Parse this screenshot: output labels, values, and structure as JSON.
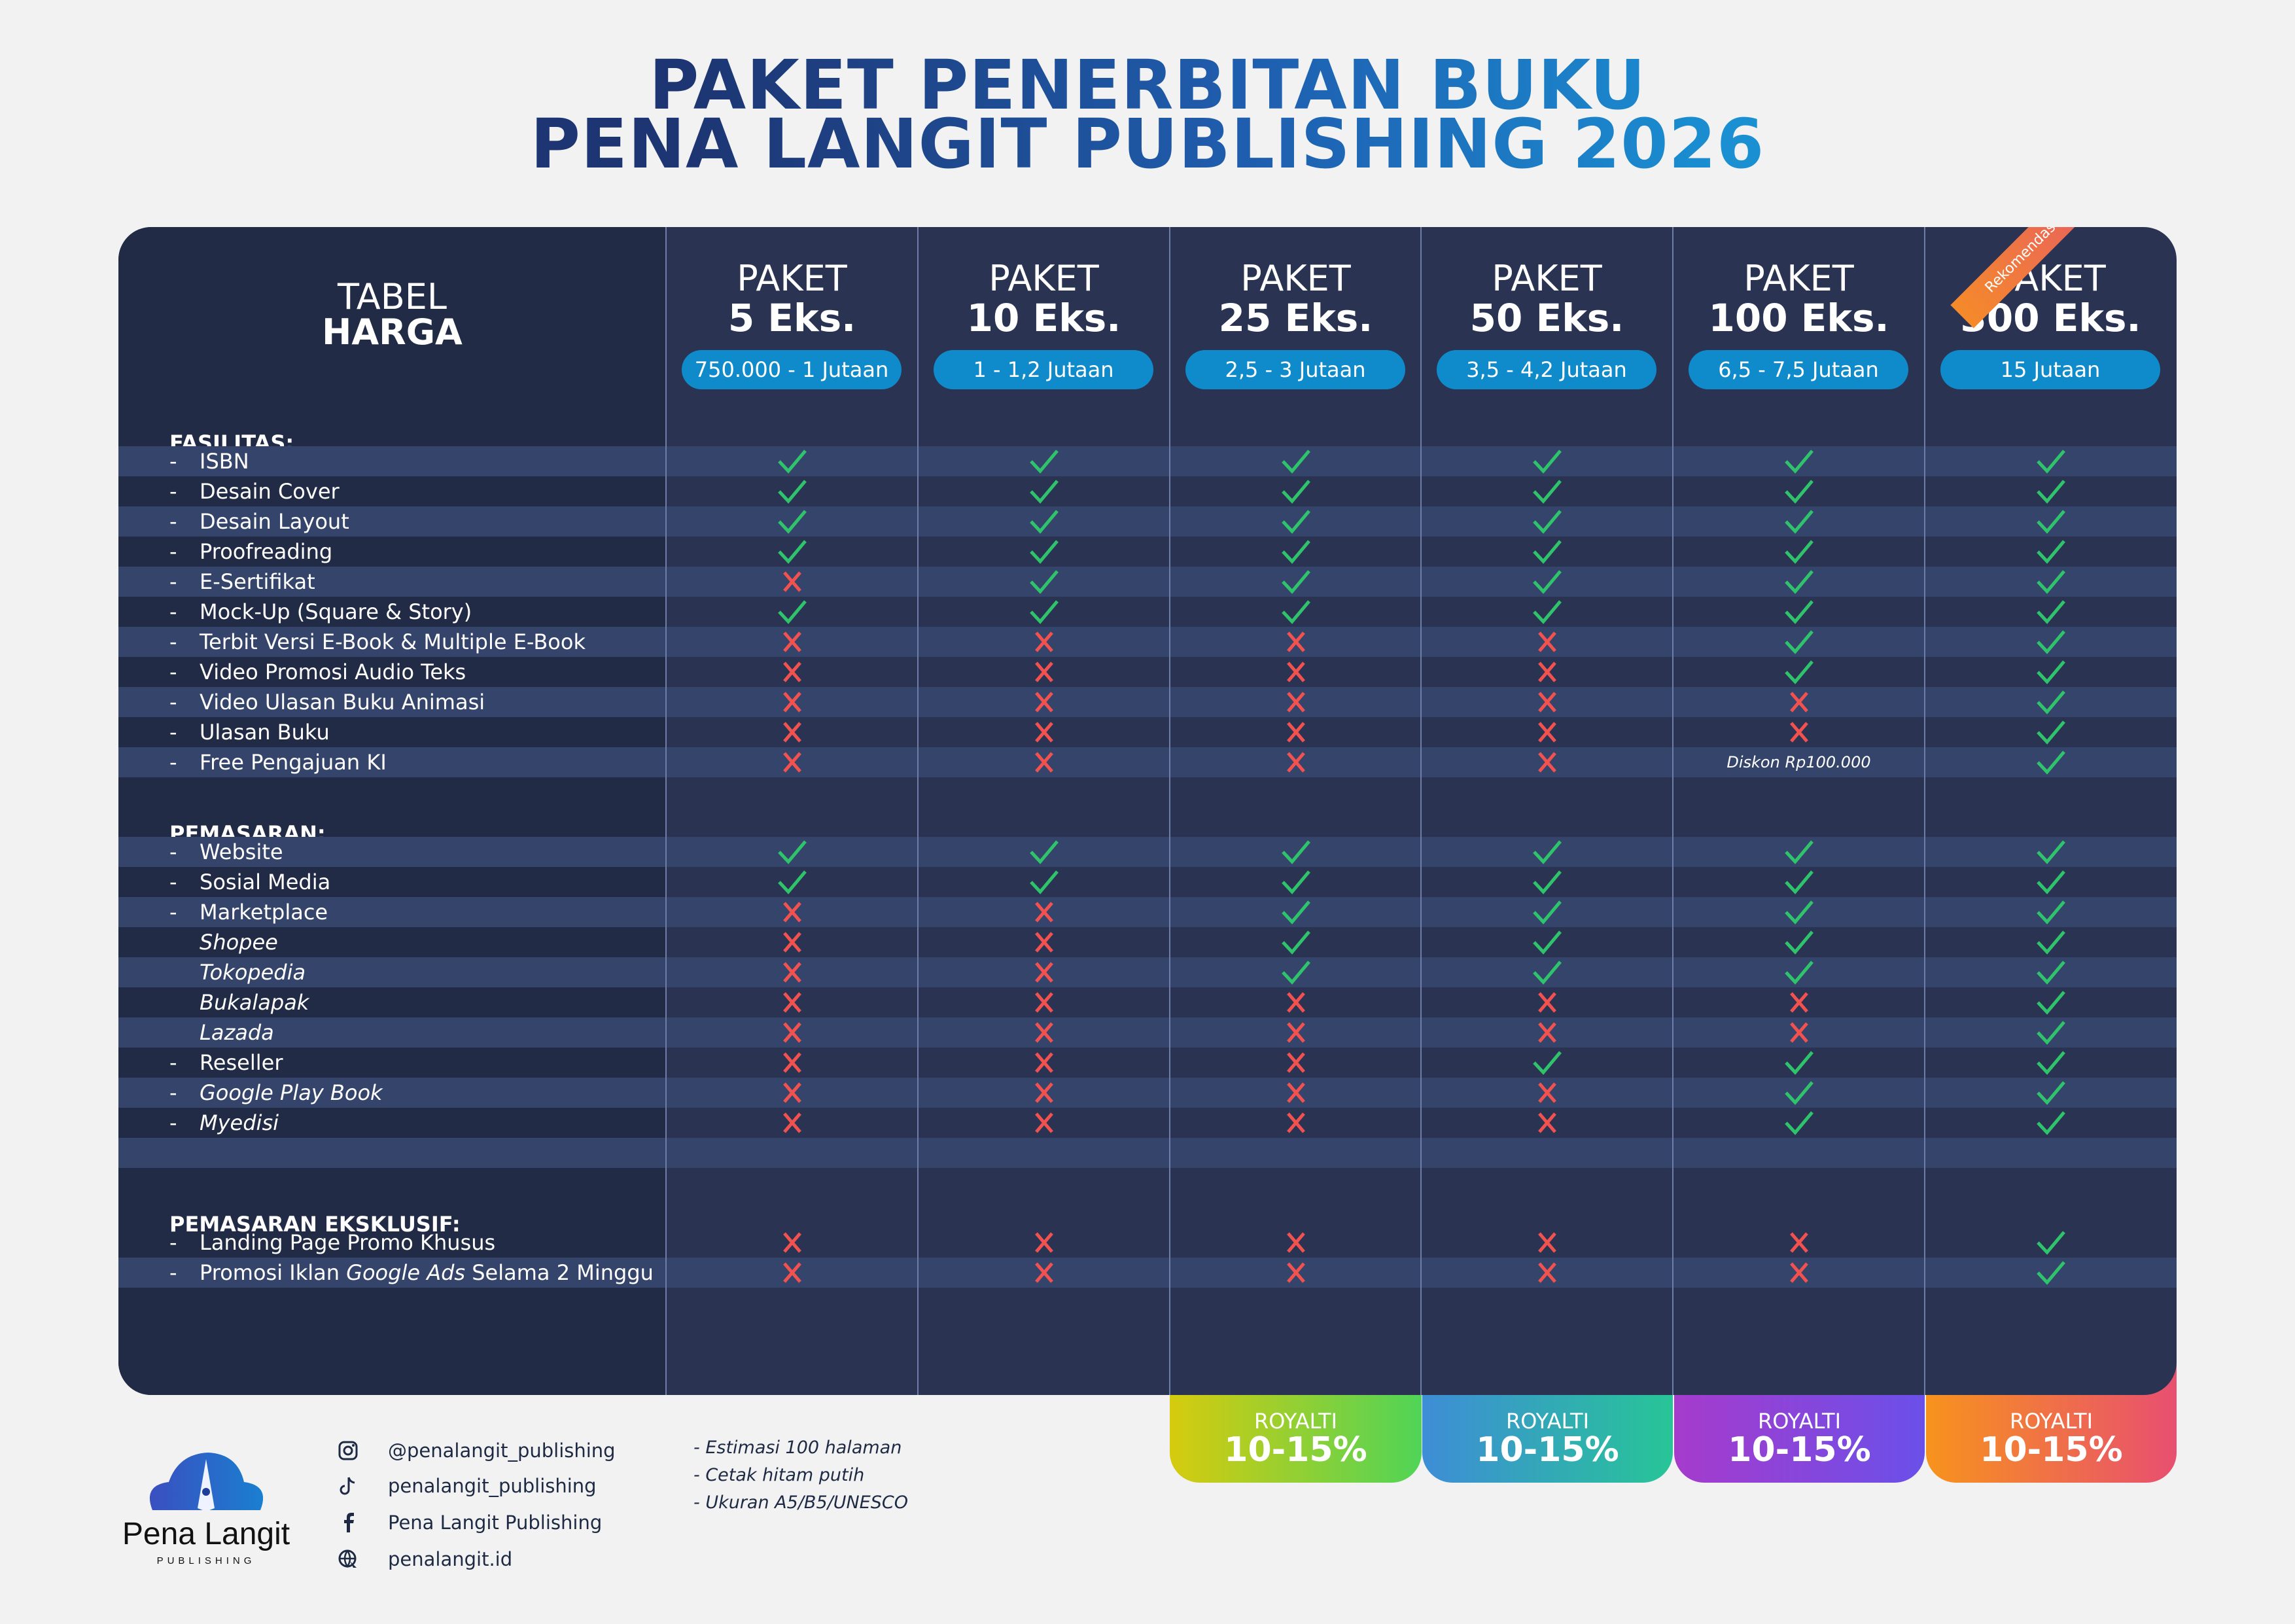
{
  "title": {
    "line1": "PAKET PENERBITAN BUKU",
    "line2": "PENA LANGIT PUBLISHING 2026"
  },
  "table_label": {
    "line1": "TABEL",
    "line2": "HARGA"
  },
  "badge": "Rekomendasi",
  "packages": [
    {
      "label": "PAKET",
      "name": "5 Eks.",
      "price": "750.000 - 1 Jutaan"
    },
    {
      "label": "PAKET",
      "name": "10 Eks.",
      "price": "1 - 1,2 Jutaan"
    },
    {
      "label": "PAKET",
      "name": "25 Eks.",
      "price": "2,5 - 3 Jutaan"
    },
    {
      "label": "PAKET",
      "name": "50 Eks.",
      "price": "3,5 - 4,2 Jutaan"
    },
    {
      "label": "PAKET",
      "name": "100 Eks.",
      "price": "6,5 - 7,5 Jutaan"
    },
    {
      "label": "PAKET",
      "name": "300 Eks.",
      "price": "15 Jutaan"
    }
  ],
  "sections": [
    {
      "title": "FASILITAS:",
      "rows": [
        {
          "label": "ISBN",
          "dash": true,
          "values": [
            "check",
            "check",
            "check",
            "check",
            "check",
            "check"
          ]
        },
        {
          "label": "Desain Cover",
          "dash": true,
          "values": [
            "check",
            "check",
            "check",
            "check",
            "check",
            "check"
          ]
        },
        {
          "label": "Desain Layout",
          "dash": true,
          "values": [
            "check",
            "check",
            "check",
            "check",
            "check",
            "check"
          ]
        },
        {
          "label": "Proofreading",
          "dash": true,
          "values": [
            "check",
            "check",
            "check",
            "check",
            "check",
            "check"
          ]
        },
        {
          "label": "E-Sertifikat",
          "dash": true,
          "values": [
            "cross",
            "check",
            "check",
            "check",
            "check",
            "check"
          ]
        },
        {
          "label": "Mock-Up (Square & Story)",
          "dash": true,
          "values": [
            "check",
            "check",
            "check",
            "check",
            "check",
            "check"
          ]
        },
        {
          "label": "Terbit Versi E-Book & Multiple E-Book",
          "dash": true,
          "values": [
            "cross",
            "cross",
            "cross",
            "cross",
            "check",
            "check"
          ]
        },
        {
          "label": "Video Promosi Audio Teks",
          "dash": true,
          "values": [
            "cross",
            "cross",
            "cross",
            "cross",
            "check",
            "check"
          ]
        },
        {
          "label": "Video Ulasan Buku Animasi",
          "dash": true,
          "values": [
            "cross",
            "cross",
            "cross",
            "cross",
            "cross",
            "check"
          ]
        },
        {
          "label": "Ulasan Buku",
          "dash": true,
          "values": [
            "cross",
            "cross",
            "cross",
            "cross",
            "cross",
            "check"
          ]
        },
        {
          "label": "Free Pengajuan KI",
          "dash": true,
          "values": [
            "cross",
            "cross",
            "cross",
            "cross",
            "Diskon Rp100.000",
            "check"
          ]
        }
      ]
    },
    {
      "title": "PEMASARAN:",
      "rows": [
        {
          "label": "Website",
          "dash": true,
          "values": [
            "check",
            "check",
            "check",
            "check",
            "check",
            "check"
          ]
        },
        {
          "label": "Sosial Media",
          "dash": true,
          "values": [
            "check",
            "check",
            "check",
            "check",
            "check",
            "check"
          ]
        },
        {
          "label": "Marketplace",
          "dash": true,
          "values": [
            "cross",
            "cross",
            "check",
            "check",
            "check",
            "check"
          ]
        },
        {
          "label": "Shopee",
          "italic": true,
          "values": [
            "cross",
            "cross",
            "check",
            "check",
            "check",
            "check"
          ]
        },
        {
          "label": "Tokopedia",
          "italic": true,
          "values": [
            "cross",
            "cross",
            "check",
            "check",
            "check",
            "check"
          ]
        },
        {
          "label": "Bukalapak",
          "italic": true,
          "values": [
            "cross",
            "cross",
            "cross",
            "cross",
            "cross",
            "check"
          ]
        },
        {
          "label": "Lazada",
          "italic": true,
          "values": [
            "cross",
            "cross",
            "cross",
            "cross",
            "cross",
            "check"
          ]
        },
        {
          "label": "Reseller",
          "dash": true,
          "values": [
            "cross",
            "cross",
            "cross",
            "check",
            "check",
            "check"
          ]
        },
        {
          "label": "Google Play Book",
          "dash": true,
          "italic": true,
          "values": [
            "cross",
            "cross",
            "cross",
            "cross",
            "check",
            "check"
          ]
        },
        {
          "label": "Myedisi",
          "dash": true,
          "italic": true,
          "values": [
            "cross",
            "cross",
            "cross",
            "cross",
            "check",
            "check"
          ]
        }
      ]
    },
    {
      "title": "PEMASARAN EKSKLUSIF:",
      "rows": [
        {
          "label": "Landing Page Promo Khusus",
          "dash": true,
          "values": [
            "cross",
            "cross",
            "cross",
            "cross",
            "cross",
            "check"
          ]
        },
        {
          "label_parts": [
            {
              "t": "Promosi Iklan "
            },
            {
              "t": "Google Ads",
              "i": true
            },
            {
              "t": " Selama 2 Minggu"
            }
          ],
          "dash": true,
          "values": [
            "cross",
            "cross",
            "cross",
            "cross",
            "cross",
            "check"
          ]
        }
      ]
    }
  ],
  "royalty": [
    {
      "label": "ROYALTI",
      "value": "10-15%",
      "colors": [
        "#d6cb0e",
        "#50d457"
      ]
    },
    {
      "label": "ROYALTI",
      "value": "10-15%",
      "colors": [
        "#3e8dd6",
        "#27c597"
      ]
    },
    {
      "label": "ROYALTI",
      "value": "10-15%",
      "colors": [
        "#a63bcc",
        "#6a50e9"
      ]
    },
    {
      "label": "ROYALTI",
      "value": "10-15%",
      "colors": [
        "#f7931d",
        "#e84f70"
      ]
    }
  ],
  "brand": {
    "name": "Pena Langit",
    "sub": "PUBLISHING"
  },
  "social": [
    {
      "icon": "instagram-icon",
      "text": "@penalangit_publishing"
    },
    {
      "icon": "tiktok-icon",
      "text": "penalangit_publishing"
    },
    {
      "icon": "facebook-icon",
      "text": "Pena Langit Publishing"
    },
    {
      "icon": "globe-icon",
      "text": "penalangit.id"
    }
  ],
  "notes": [
    "- Estimasi 100 halaman",
    "- Cetak hitam putih",
    "- Ukuran A5/B5/UNESCO"
  ],
  "colors": {
    "check": "#2fc46b",
    "cross": "#f2524f",
    "pill": "#0f8bcb",
    "table": "#2a3452",
    "label_col": "#222b45",
    "stripe": "#35446a"
  }
}
